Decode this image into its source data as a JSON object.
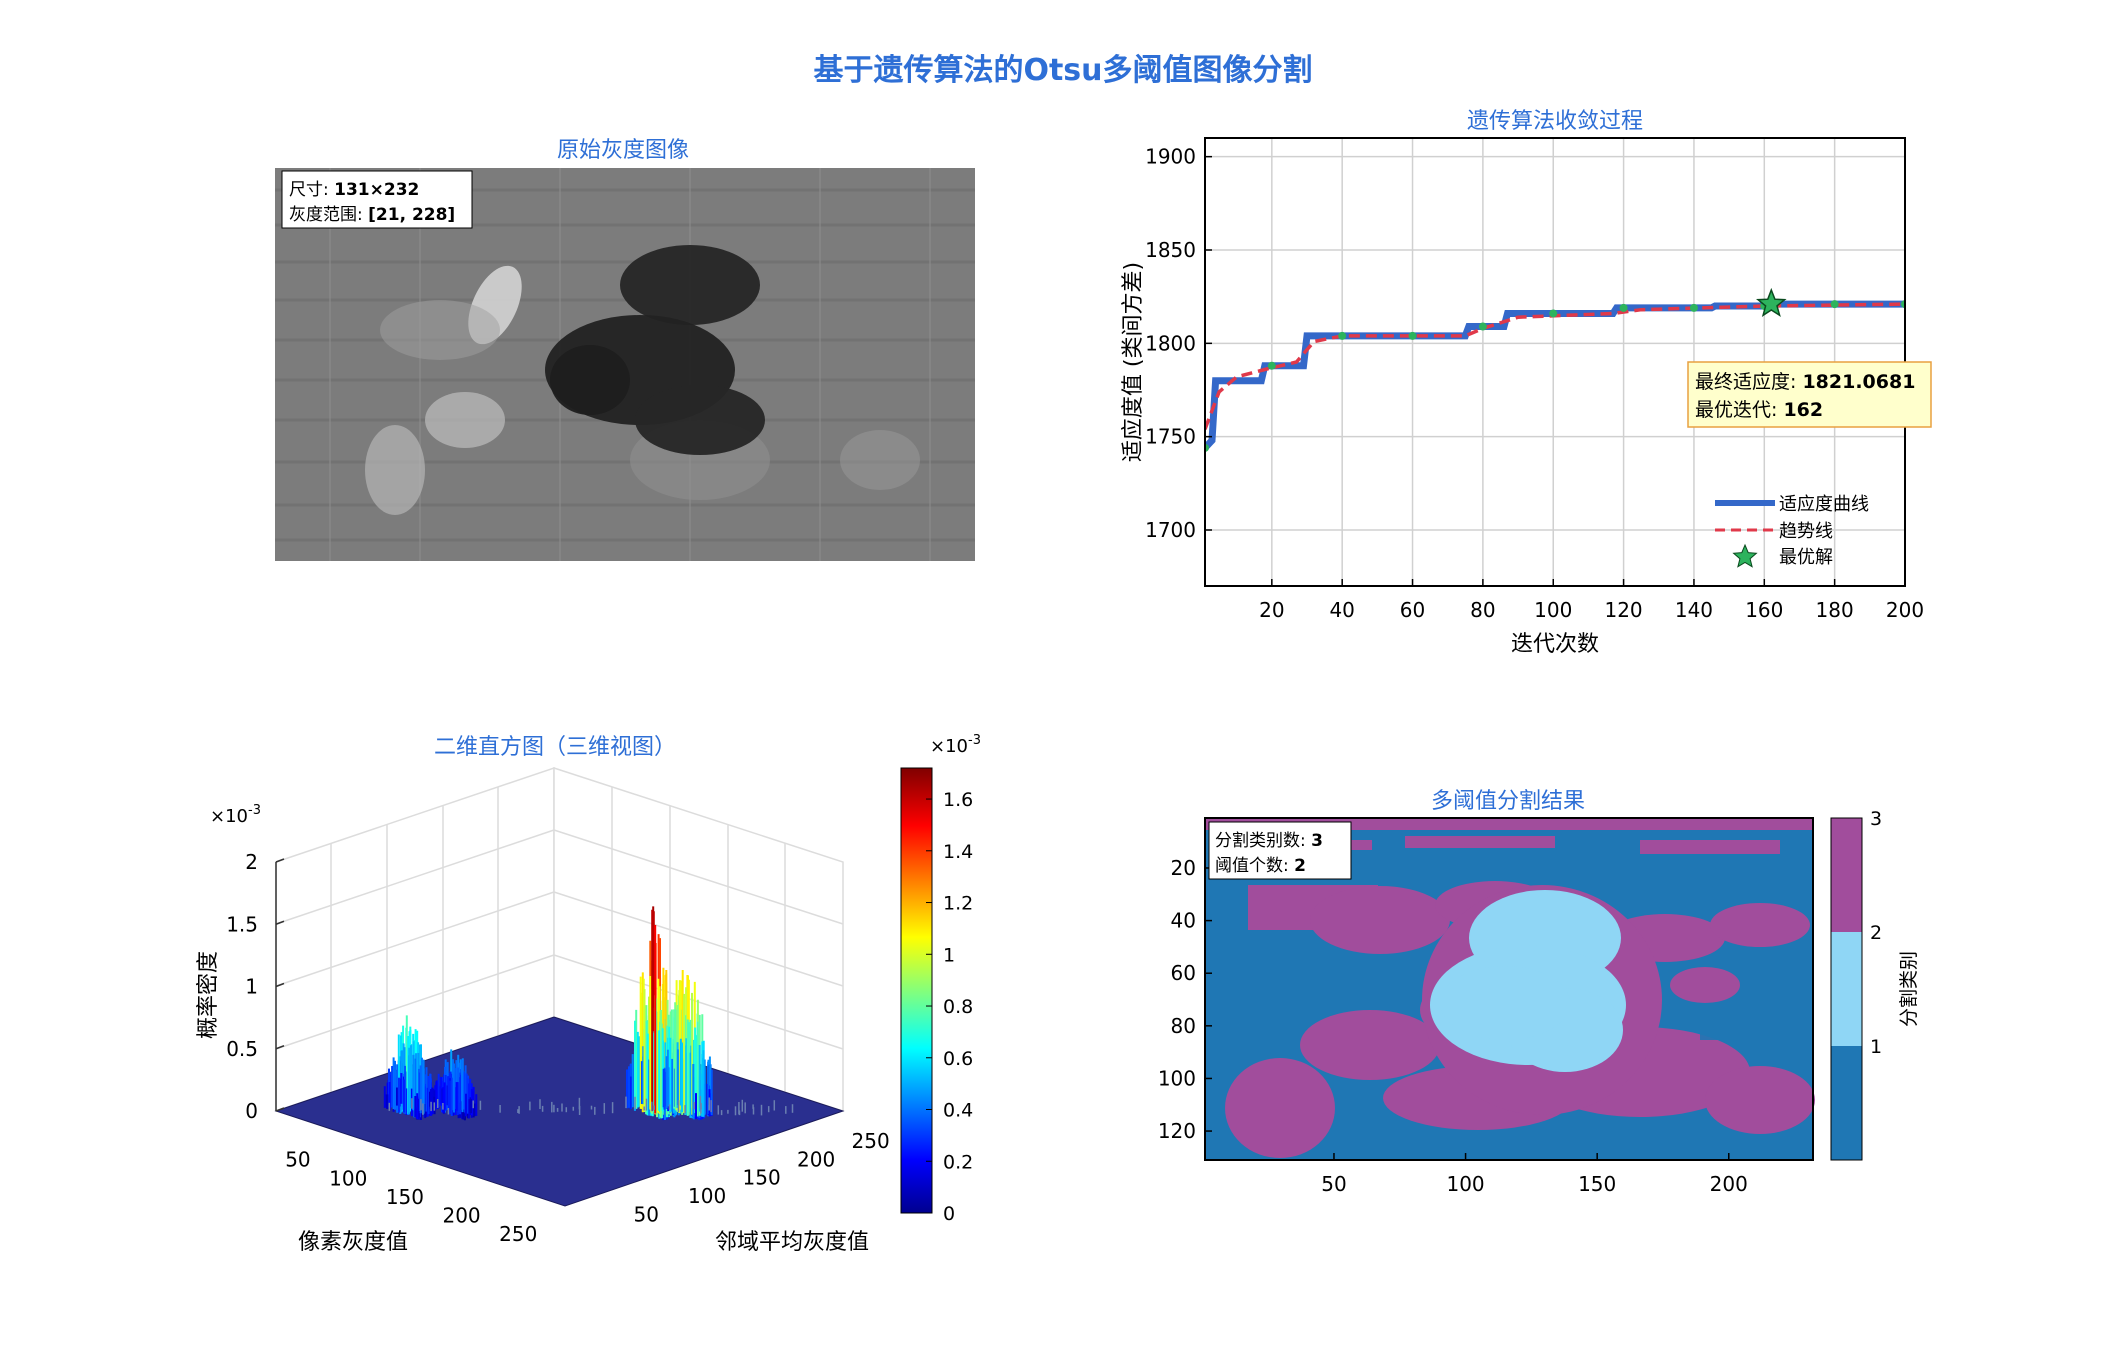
{
  "figure": {
    "title": "基于遗传算法的Otsu多阈值图像分割",
    "title_color": "#2e6fd6"
  },
  "image_panel": {
    "title": "原始灰度图像",
    "info_size_label": "尺寸: ",
    "info_size_value": "131×232",
    "info_range_label": "灰度范围: ",
    "info_range_value": "[21, 228]"
  },
  "colors": {
    "title": "#2e6fd6",
    "fitness": "#3468c9",
    "trend": "#e0394a",
    "best": "#2db35d",
    "annot_bg": "#ffffcc",
    "annot_border": "#e8a040",
    "class1": "#1f77b4",
    "class2": "#8fd6f5",
    "class3": "#a14d9c",
    "hist_floor": "#2a2f8f"
  },
  "chart_data": [
    {
      "type": "line",
      "title": "遗传算法收敛过程",
      "xlabel": "迭代次数",
      "ylabel": "适应度值 (类间方差)",
      "xlim": [
        1,
        200
      ],
      "ylim": [
        1670,
        1910
      ],
      "xticks": [
        20,
        40,
        60,
        80,
        100,
        120,
        140,
        160,
        180,
        200
      ],
      "yticks": [
        1700,
        1750,
        1800,
        1850,
        1900
      ],
      "grid": true,
      "legend_position": "lower-right",
      "series": [
        {
          "name": "适应度曲线",
          "style": "solid",
          "points": [
            [
              1,
              1744
            ],
            [
              3,
              1748
            ],
            [
              4,
              1780
            ],
            [
              17,
              1780
            ],
            [
              18,
              1788
            ],
            [
              29,
              1788
            ],
            [
              30,
              1804
            ],
            [
              75,
              1804
            ],
            [
              76,
              1809
            ],
            [
              86,
              1809
            ],
            [
              87,
              1816
            ],
            [
              117,
              1816
            ],
            [
              118,
              1819
            ],
            [
              145,
              1819
            ],
            [
              146,
              1820
            ],
            [
              160,
              1820
            ],
            [
              161,
              1821
            ],
            [
              200,
              1821
            ]
          ]
        },
        {
          "name": "趋势线",
          "style": "dashed",
          "points": [
            [
              1,
              1754
            ],
            [
              5,
              1774
            ],
            [
              10,
              1782
            ],
            [
              18,
              1786
            ],
            [
              27,
              1790
            ],
            [
              32,
              1801
            ],
            [
              40,
              1804
            ],
            [
              75,
              1804
            ],
            [
              80,
              1808
            ],
            [
              90,
              1814
            ],
            [
              117,
              1816
            ],
            [
              125,
              1818
            ],
            [
              160,
              1820
            ],
            [
              200,
              1821
            ]
          ]
        },
        {
          "name": "最优解",
          "style": "marker",
          "points": [
            [
              162,
              1821.0681
            ]
          ]
        }
      ],
      "marker_points": [
        [
          1,
          1744
        ],
        [
          20,
          1788
        ],
        [
          40,
          1804
        ],
        [
          60,
          1804
        ],
        [
          80,
          1809
        ],
        [
          100,
          1816
        ],
        [
          120,
          1819
        ],
        [
          140,
          1819
        ],
        [
          160,
          1820
        ],
        [
          180,
          1821
        ],
        [
          200,
          1821
        ]
      ],
      "annotation": {
        "fitness_label": "最终适应度: ",
        "fitness_value": "1821.0681",
        "iter_label": "最优迭代: ",
        "iter_value": "162"
      }
    },
    {
      "type": "surface",
      "title": "二维直方图（三维视图）",
      "xlabel": "像素灰度值",
      "ylabel": "邻域平均灰度值",
      "zlabel": "概率密度",
      "xticks": [
        50,
        100,
        150,
        200,
        250
      ],
      "yticks": [
        50,
        100,
        150,
        200,
        250
      ],
      "zticks": [
        0,
        0.5,
        1,
        1.5,
        2
      ],
      "zscale": "×10",
      "zscale_exp": "-3",
      "colorbar": {
        "ticks": [
          0,
          0.2,
          0.4,
          0.6,
          0.8,
          1,
          1.2,
          1.4,
          1.6
        ],
        "max": 1.72,
        "scale": "×10",
        "scale_exp": "-3",
        "colormap": "jet"
      },
      "peaks": [
        {
          "gray": 60,
          "mean": 60,
          "height": 0.8
        },
        {
          "gray": 80,
          "mean": 80,
          "height": 0.55
        },
        {
          "gray": 170,
          "mean": 170,
          "height": 1.72
        },
        {
          "gray": 185,
          "mean": 185,
          "height": 1.35
        }
      ]
    },
    {
      "type": "heatmap",
      "title": "多阈值分割结果",
      "xticks": [
        50,
        100,
        150,
        200
      ],
      "yticks": [
        20,
        40,
        60,
        80,
        100,
        120
      ],
      "xlim": [
        1,
        232
      ],
      "ylim": [
        1,
        131
      ],
      "info_classes_label": "分割类别数: ",
      "info_classes_value": "3",
      "info_thresh_label": "阈值个数: ",
      "info_thresh_value": "2",
      "colorbar": {
        "label": "分割类别",
        "ticks": [
          1,
          2,
          3
        ]
      }
    }
  ]
}
